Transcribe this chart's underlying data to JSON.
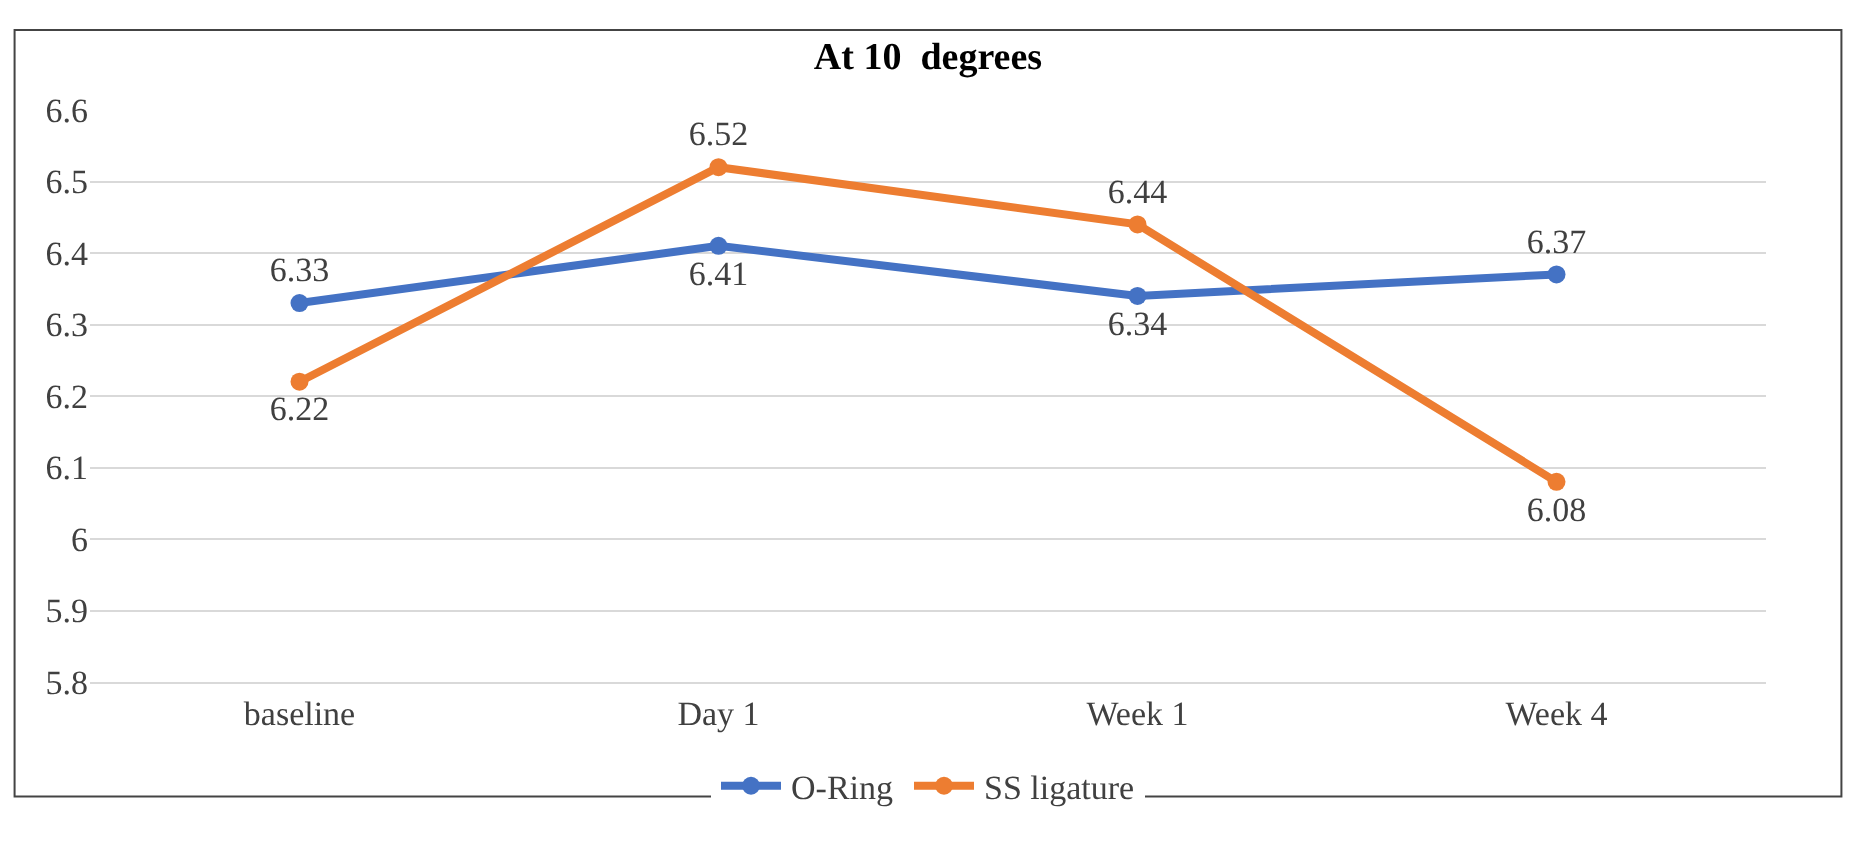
{
  "chart_data": {
    "type": "line",
    "title": "At 10  degrees",
    "categories": [
      "baseline",
      "Day 1",
      "Week 1",
      "Week 4"
    ],
    "series": [
      {
        "name": "O-Ring",
        "color": "#4472c4",
        "values": [
          6.33,
          6.41,
          6.34,
          6.37
        ]
      },
      {
        "name": "SS ligature",
        "color": "#ed7d31",
        "values": [
          6.22,
          6.52,
          6.44,
          6.08
        ]
      }
    ],
    "ylim": [
      5.8,
      6.6
    ],
    "yticks": [
      5.8,
      5.9,
      6,
      6.1,
      6.2,
      6.3,
      6.4,
      6.5,
      6.6
    ],
    "grid": "y",
    "legend": "bottom",
    "marker": "circle",
    "line_style": "solid",
    "data_labels": true
  }
}
